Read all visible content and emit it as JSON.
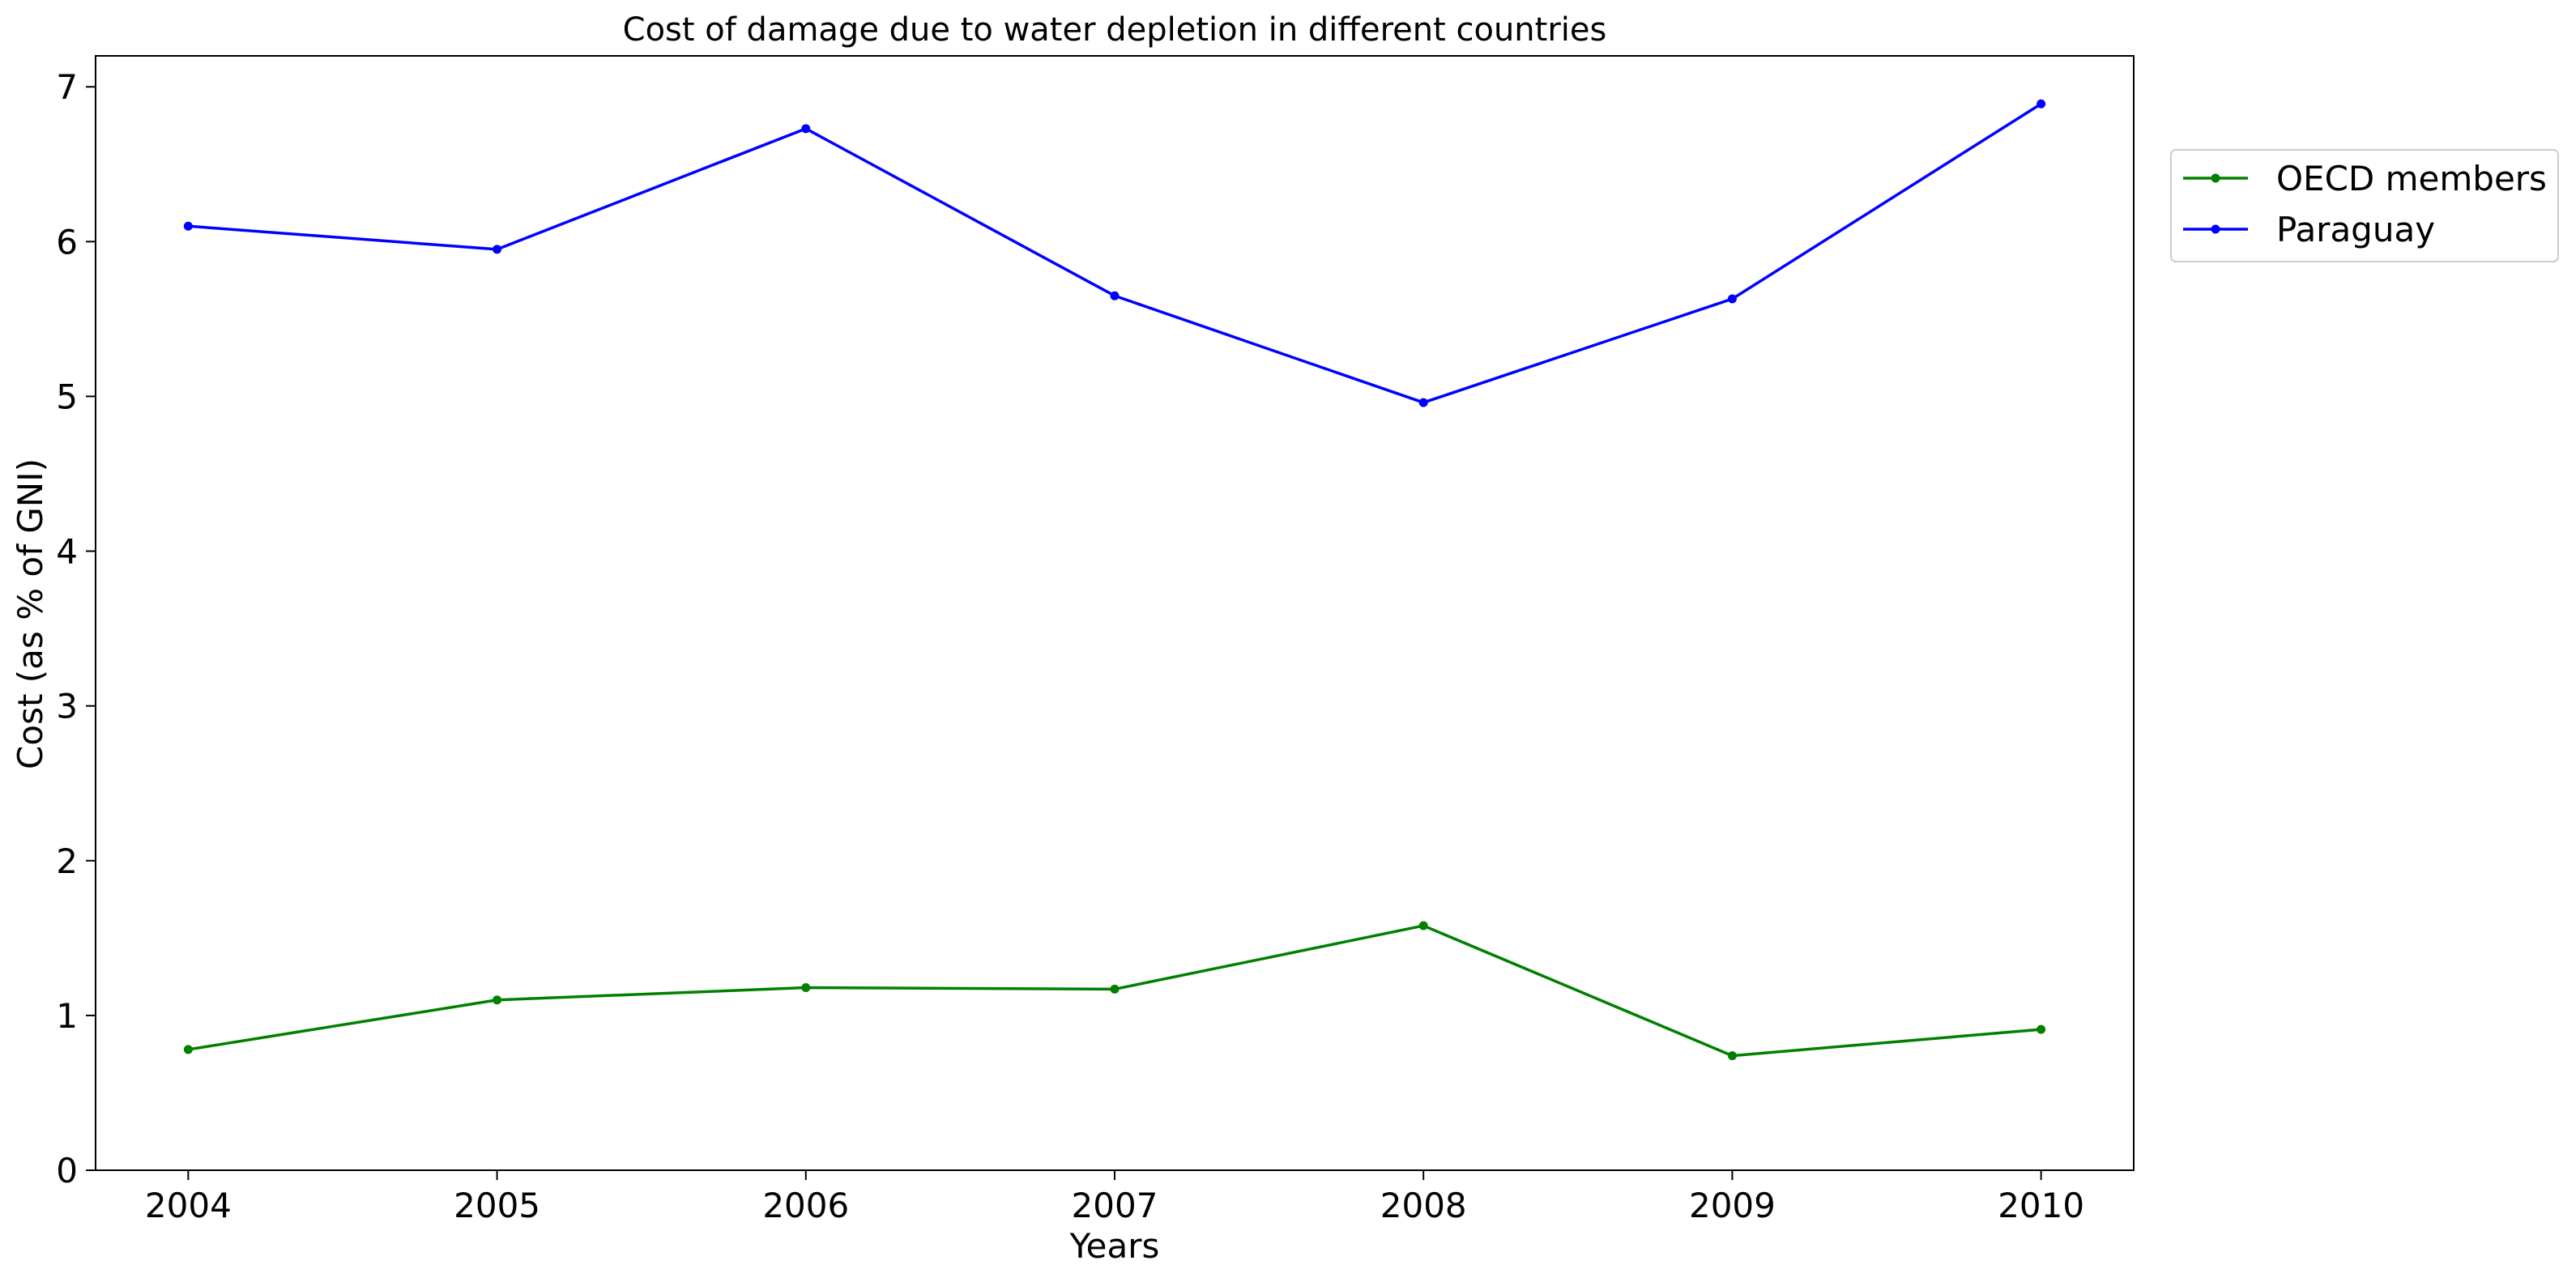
{
  "chart_data": {
    "type": "line",
    "title": "Cost of damage due to water depletion in different countries",
    "xlabel": "Years",
    "ylabel": "Cost (as % of GNI)",
    "x": [
      2004,
      2005,
      2006,
      2007,
      2008,
      2009,
      2010
    ],
    "xlim": [
      2003.7,
      2010.3
    ],
    "ylim": [
      0,
      7.2
    ],
    "yticks": [
      0,
      1,
      2,
      3,
      4,
      5,
      6,
      7
    ],
    "grid": false,
    "legend_position": "upper right, outside plot area",
    "series": [
      {
        "name": "OECD members",
        "color": "#008000",
        "values": [
          0.78,
          1.1,
          1.18,
          1.17,
          1.58,
          0.74,
          0.91
        ]
      },
      {
        "name": "Paraguay",
        "color": "#0000ff",
        "values": [
          6.1,
          5.95,
          6.73,
          5.65,
          4.96,
          5.63,
          6.89
        ]
      }
    ]
  }
}
